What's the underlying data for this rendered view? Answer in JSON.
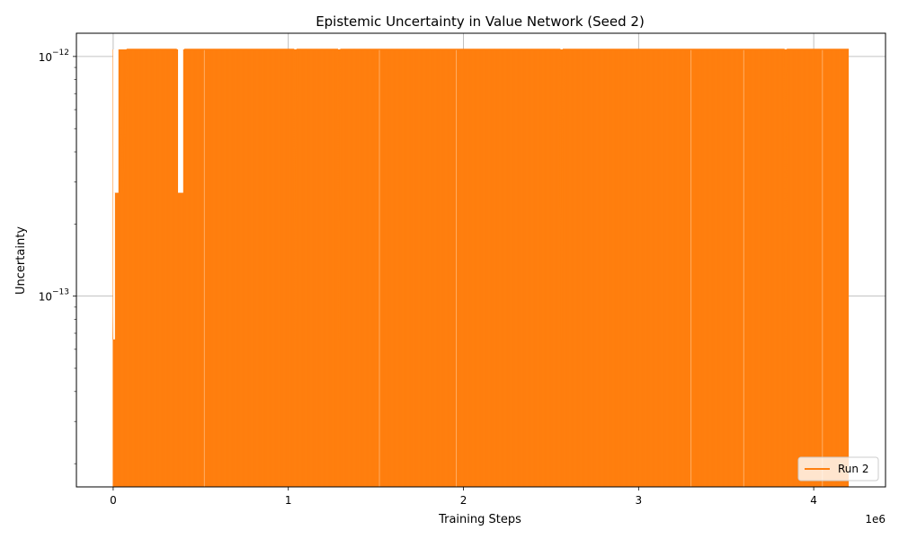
{
  "chart_data": {
    "type": "line",
    "title": "Epistemic Uncertainty in Value Network (Seed 2)",
    "xlabel": "Training Steps",
    "ylabel": "Uncertainty",
    "x_offset_label": "1e6",
    "xscale": "linear",
    "yscale": "log",
    "xlim": [
      -210000,
      4410000
    ],
    "ylim": [
      1.6e-14,
      1.25e-12
    ],
    "x_ticks": [
      0,
      1000000,
      2000000,
      3000000,
      4000000
    ],
    "x_tick_labels": [
      "0",
      "1",
      "2",
      "3",
      "4"
    ],
    "y_major_ticks": [
      1e-13,
      1e-12
    ],
    "y_tick_labels": [
      {
        "base": "10",
        "exp": "−13"
      },
      {
        "base": "10",
        "exp": "−12"
      }
    ],
    "grid": true,
    "legend_position": "bottom-right",
    "series": [
      {
        "name": "Run 2",
        "color": "#ff7f0e",
        "x_range": [
          0,
          4200000
        ],
        "levels": [
          1.07e-12,
          2.7e-13,
          6.6e-14,
          0
        ],
        "level_note_x": [
          0,
          1040000,
          1290000,
          2560000,
          3840000
        ],
        "points": [
          [
            0,
            6.6e-14
          ],
          [
            10000,
            2.7e-13
          ],
          [
            30000,
            1.07e-12
          ],
          [
            60000,
            2.7e-13
          ],
          [
            80000,
            1.07e-12
          ],
          [
            360000,
            1.07e-12
          ],
          [
            380000,
            2.7e-13
          ],
          [
            410000,
            1.07e-12
          ],
          [
            1030000,
            1.07e-12
          ],
          [
            1040000,
            6.6e-14
          ],
          [
            1050000,
            1.07e-12
          ],
          [
            1280000,
            1.07e-12
          ],
          [
            1290000,
            6.6e-14
          ],
          [
            1300000,
            1.07e-12
          ],
          [
            2550000,
            1.07e-12
          ],
          [
            2560000,
            6.6e-14
          ],
          [
            2570000,
            1.07e-12
          ],
          [
            3830000,
            1.07e-12
          ],
          [
            3840000,
            6.6e-14
          ],
          [
            3850000,
            1.07e-12
          ],
          [
            4200000,
            1.07e-12
          ]
        ]
      }
    ]
  }
}
